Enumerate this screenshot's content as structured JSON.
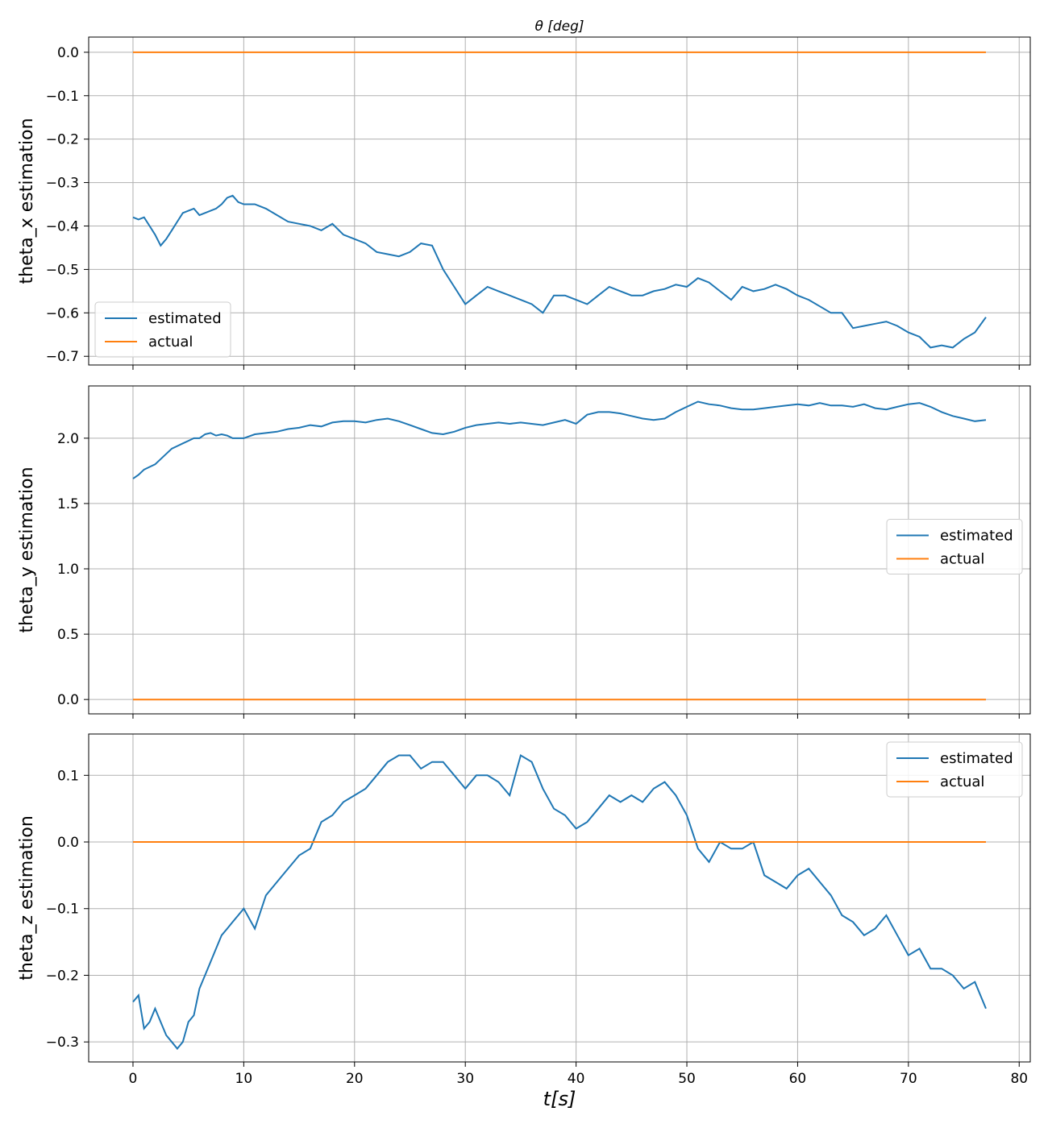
{
  "figure": {
    "title": "θ [deg]",
    "xlabel": "t[s]"
  },
  "chart_data": [
    {
      "type": "line",
      "ylabel": "theta_x estimation",
      "xlim": [
        -4,
        81
      ],
      "ylim": [
        -0.72,
        0.035
      ],
      "xticks": [
        0,
        10,
        20,
        30,
        40,
        50,
        60,
        70,
        80
      ],
      "yticks": [
        0.0,
        -0.1,
        -0.2,
        -0.3,
        -0.4,
        -0.5,
        -0.6,
        -0.7
      ],
      "ytick_labels": [
        "0.0",
        "−0.1",
        "−0.2",
        "−0.3",
        "−0.4",
        "−0.5",
        "−0.6",
        "−0.7"
      ],
      "grid": true,
      "legend": "bottom-left",
      "series": [
        {
          "name": "estimated",
          "color": "#1f77b4",
          "x": [
            0,
            0.5,
            1,
            1.5,
            2,
            2.5,
            3,
            3.5,
            4,
            4.5,
            5,
            5.5,
            6,
            6.5,
            7,
            7.5,
            8,
            8.5,
            9,
            9.5,
            10,
            11,
            12,
            13,
            14,
            15,
            16,
            17,
            18,
            19,
            20,
            21,
            22,
            23,
            24,
            25,
            26,
            27,
            28,
            29,
            30,
            31,
            32,
            33,
            34,
            35,
            36,
            37,
            38,
            39,
            40,
            41,
            42,
            43,
            44,
            45,
            46,
            47,
            48,
            49,
            50,
            51,
            52,
            53,
            54,
            55,
            56,
            57,
            58,
            59,
            60,
            61,
            62,
            63,
            64,
            65,
            66,
            67,
            68,
            69,
            70,
            71,
            72,
            73,
            74,
            75,
            76,
            77
          ],
          "y": [
            -0.38,
            -0.385,
            -0.38,
            -0.4,
            -0.42,
            -0.445,
            -0.43,
            -0.41,
            -0.39,
            -0.37,
            -0.365,
            -0.36,
            -0.375,
            -0.37,
            -0.365,
            -0.36,
            -0.35,
            -0.335,
            -0.33,
            -0.345,
            -0.35,
            -0.35,
            -0.36,
            -0.375,
            -0.39,
            -0.395,
            -0.4,
            -0.41,
            -0.395,
            -0.42,
            -0.43,
            -0.44,
            -0.46,
            -0.465,
            -0.47,
            -0.46,
            -0.44,
            -0.445,
            -0.5,
            -0.54,
            -0.58,
            -0.56,
            -0.54,
            -0.55,
            -0.56,
            -0.57,
            -0.58,
            -0.6,
            -0.56,
            -0.56,
            -0.57,
            -0.58,
            -0.56,
            -0.54,
            -0.55,
            -0.56,
            -0.56,
            -0.55,
            -0.545,
            -0.535,
            -0.54,
            -0.52,
            -0.53,
            -0.55,
            -0.57,
            -0.54,
            -0.55,
            -0.545,
            -0.535,
            -0.545,
            -0.56,
            -0.57,
            -0.585,
            -0.6,
            -0.6,
            -0.635,
            -0.63,
            -0.625,
            -0.62,
            -0.63,
            -0.645,
            -0.655,
            -0.68,
            -0.675,
            -0.68,
            -0.66,
            -0.645,
            -0.61
          ]
        },
        {
          "name": "actual",
          "color": "#ff7f0e",
          "x": [
            0,
            77
          ],
          "y": [
            0,
            0
          ]
        }
      ]
    },
    {
      "type": "line",
      "ylabel": "theta_y estimation",
      "xlim": [
        -4,
        81
      ],
      "ylim": [
        -0.11,
        2.4
      ],
      "xticks": [
        0,
        10,
        20,
        30,
        40,
        50,
        60,
        70,
        80
      ],
      "yticks": [
        0.0,
        0.5,
        1.0,
        1.5,
        2.0
      ],
      "ytick_labels": [
        "0.0",
        "0.5",
        "1.0",
        "1.5",
        "2.0"
      ],
      "grid": true,
      "legend": "center-right",
      "series": [
        {
          "name": "estimated",
          "color": "#1f77b4",
          "x": [
            0,
            0.5,
            1,
            1.5,
            2,
            2.5,
            3,
            3.5,
            4,
            4.5,
            5,
            5.5,
            6,
            6.5,
            7,
            7.5,
            8,
            8.5,
            9,
            9.5,
            10,
            11,
            12,
            13,
            14,
            15,
            16,
            17,
            18,
            19,
            20,
            21,
            22,
            23,
            24,
            25,
            26,
            27,
            28,
            29,
            30,
            31,
            32,
            33,
            34,
            35,
            36,
            37,
            38,
            39,
            40,
            41,
            42,
            43,
            44,
            45,
            46,
            47,
            48,
            49,
            50,
            51,
            52,
            53,
            54,
            55,
            56,
            57,
            58,
            59,
            60,
            61,
            62,
            63,
            64,
            65,
            66,
            67,
            68,
            69,
            70,
            71,
            72,
            73,
            74,
            75,
            76,
            77
          ],
          "y": [
            1.69,
            1.72,
            1.76,
            1.78,
            1.8,
            1.84,
            1.88,
            1.92,
            1.94,
            1.96,
            1.98,
            2.0,
            2.0,
            2.03,
            2.04,
            2.02,
            2.03,
            2.02,
            2.0,
            2.0,
            2.0,
            2.03,
            2.04,
            2.05,
            2.07,
            2.08,
            2.1,
            2.09,
            2.12,
            2.13,
            2.13,
            2.12,
            2.14,
            2.15,
            2.13,
            2.1,
            2.07,
            2.04,
            2.03,
            2.05,
            2.08,
            2.1,
            2.11,
            2.12,
            2.11,
            2.12,
            2.11,
            2.1,
            2.12,
            2.14,
            2.11,
            2.18,
            2.2,
            2.2,
            2.19,
            2.17,
            2.15,
            2.14,
            2.15,
            2.2,
            2.24,
            2.28,
            2.26,
            2.25,
            2.23,
            2.22,
            2.22,
            2.23,
            2.24,
            2.25,
            2.26,
            2.25,
            2.27,
            2.25,
            2.25,
            2.24,
            2.26,
            2.23,
            2.22,
            2.24,
            2.26,
            2.27,
            2.24,
            2.2,
            2.17,
            2.15,
            2.13,
            2.14
          ]
        },
        {
          "name": "actual",
          "color": "#ff7f0e",
          "x": [
            0,
            77
          ],
          "y": [
            0,
            0
          ]
        }
      ]
    },
    {
      "type": "line",
      "ylabel": "theta_z estimation",
      "xlim": [
        -4,
        81
      ],
      "ylim": [
        -0.33,
        0.162
      ],
      "xticks": [
        0,
        10,
        20,
        30,
        40,
        50,
        60,
        70,
        80
      ],
      "xtick_labels": [
        "0",
        "10",
        "20",
        "30",
        "40",
        "50",
        "60",
        "70",
        "80"
      ],
      "yticks": [
        0.1,
        0.0,
        -0.1,
        -0.2,
        -0.3
      ],
      "ytick_labels": [
        "0.1",
        "0.0",
        "−0.1",
        "−0.2",
        "−0.3"
      ],
      "grid": true,
      "legend": "top-right",
      "series": [
        {
          "name": "estimated",
          "color": "#1f77b4",
          "x": [
            0,
            0.5,
            1,
            1.5,
            2,
            2.5,
            3,
            3.5,
            4,
            4.5,
            5,
            5.5,
            6,
            6.5,
            7,
            7.5,
            8,
            8.5,
            9,
            9.5,
            10,
            11,
            12,
            13,
            14,
            15,
            16,
            17,
            18,
            19,
            20,
            21,
            22,
            23,
            24,
            25,
            26,
            27,
            28,
            29,
            30,
            31,
            32,
            33,
            34,
            35,
            36,
            37,
            38,
            39,
            40,
            41,
            42,
            43,
            44,
            45,
            46,
            47,
            48,
            49,
            50,
            51,
            52,
            53,
            54,
            55,
            56,
            57,
            58,
            59,
            60,
            61,
            62,
            63,
            64,
            65,
            66,
            67,
            68,
            69,
            70,
            71,
            72,
            73,
            74,
            75,
            76,
            77
          ],
          "y": [
            -0.24,
            -0.23,
            -0.28,
            -0.27,
            -0.25,
            -0.27,
            -0.29,
            -0.3,
            -0.31,
            -0.3,
            -0.27,
            -0.26,
            -0.22,
            -0.2,
            -0.18,
            -0.16,
            -0.14,
            -0.13,
            -0.12,
            -0.11,
            -0.1,
            -0.13,
            -0.08,
            -0.06,
            -0.04,
            -0.02,
            -0.01,
            0.03,
            0.04,
            0.06,
            0.07,
            0.08,
            0.1,
            0.12,
            0.13,
            0.13,
            0.11,
            0.12,
            0.12,
            0.1,
            0.08,
            0.1,
            0.1,
            0.09,
            0.07,
            0.13,
            0.12,
            0.08,
            0.05,
            0.04,
            0.02,
            0.03,
            0.05,
            0.07,
            0.06,
            0.07,
            0.06,
            0.08,
            0.09,
            0.07,
            0.04,
            -0.01,
            -0.03,
            0.0,
            -0.01,
            -0.01,
            0.0,
            -0.05,
            -0.06,
            -0.07,
            -0.05,
            -0.04,
            -0.06,
            -0.08,
            -0.11,
            -0.12,
            -0.14,
            -0.13,
            -0.11,
            -0.14,
            -0.17,
            -0.16,
            -0.19,
            -0.19,
            -0.2,
            -0.22,
            -0.21,
            -0.25
          ]
        },
        {
          "name": "actual",
          "color": "#ff7f0e",
          "x": [
            0,
            77
          ],
          "y": [
            0,
            0
          ]
        }
      ]
    }
  ]
}
